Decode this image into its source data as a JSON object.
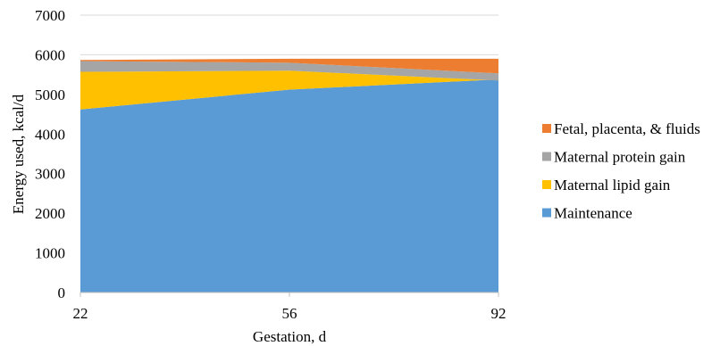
{
  "chart_data": {
    "type": "area",
    "stacked": true,
    "title": "",
    "xlabel": "Gestation, d",
    "ylabel": "Energy used, kcal/d",
    "x": [
      "22",
      "56",
      "92"
    ],
    "ylim": [
      0,
      7000
    ],
    "yticks": [
      "0",
      "1000",
      "2000",
      "3000",
      "4000",
      "5000",
      "6000",
      "7000"
    ],
    "grid": true,
    "legend_position": "right",
    "series": [
      {
        "name": "Maintenance",
        "color": "#5b9bd5",
        "values": [
          4620,
          5120,
          5380
        ]
      },
      {
        "name": "Maternal lipid gain",
        "color": "#ffc000",
        "values": [
          950,
          480,
          -30
        ]
      },
      {
        "name": "Maternal protein gain",
        "color": "#a5a5a5",
        "values": [
          270,
          200,
          180
        ]
      },
      {
        "name": "Fetal, placenta, & fluids",
        "color": "#ed7d31",
        "values": [
          30,
          100,
          370
        ]
      }
    ],
    "legend_order": [
      "Fetal, placenta, & fluids",
      "Maternal protein gain",
      "Maternal lipid gain",
      "Maintenance"
    ]
  }
}
